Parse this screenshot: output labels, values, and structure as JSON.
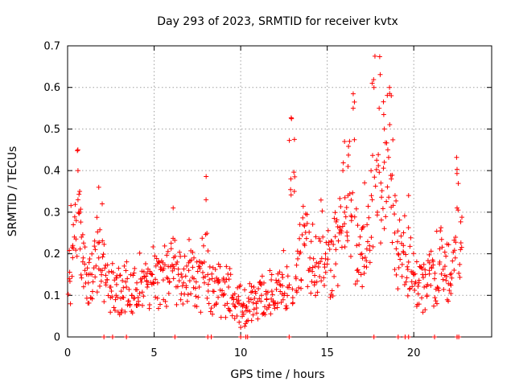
{
  "chart_data": {
    "type": "scatter",
    "title": "Day 293 of 2023, SRMTID for receiver kvtx",
    "xlabel": "GPS time / hours",
    "ylabel": "SRMTID / TECUs",
    "xlim": [
      0,
      24.5
    ],
    "ylim": [
      0,
      0.7
    ],
    "xticks": [
      0,
      5,
      10,
      15,
      20
    ],
    "xtick_labels": [
      "0",
      "5",
      "10",
      "15",
      "20"
    ],
    "yticks": [
      0,
      0.1,
      0.2,
      0.3,
      0.4,
      0.5,
      0.6,
      0.7
    ],
    "ytick_labels": [
      "0",
      "0.1",
      "0.2",
      "0.3",
      "0.4",
      "0.5",
      "0.6",
      "0.7"
    ],
    "grid": true,
    "marker": "+",
    "color": "#ff0000",
    "series": [
      {
        "name": "SRMTID",
        "x": [
          0.1,
          0.3,
          0.5,
          0.6,
          0.7,
          0.8,
          0.9,
          1.0,
          1.2,
          1.4,
          1.6,
          1.8,
          2.0,
          2.2,
          2.5,
          2.8,
          3.1,
          3.4,
          3.7,
          4.0,
          4.3,
          4.6,
          4.9,
          5.2,
          5.5,
          5.8,
          6.1,
          6.4,
          6.7,
          7.0,
          7.3,
          7.6,
          7.9,
          8.1,
          8.4,
          8.7,
          9.0,
          9.3,
          9.6,
          9.9,
          10.1,
          10.3,
          10.6,
          10.9,
          11.2,
          11.5,
          11.8,
          12.1,
          12.4,
          12.7,
          13.0,
          13.2,
          13.4,
          13.7,
          14.0,
          14.3,
          14.6,
          14.9,
          15.2,
          15.5,
          15.8,
          16.0,
          16.2,
          16.4,
          16.7,
          17.0,
          17.3,
          17.6,
          17.9,
          18.1,
          18.3,
          18.5,
          18.7,
          18.9,
          19.1,
          19.4,
          19.7,
          20.0,
          20.3,
          20.6,
          20.9,
          21.2,
          21.5,
          21.8,
          22.1,
          22.4,
          22.7,
          0.6,
          0.7,
          1.8,
          2.0,
          6.1,
          8.0,
          12.9,
          13.1,
          16.0,
          16.2,
          16.5,
          17.6,
          17.7,
          18.0,
          18.3,
          18.6,
          18.7,
          19.7,
          22.5
        ],
        "y": [
          0.14,
          0.22,
          0.28,
          0.33,
          0.3,
          0.24,
          0.19,
          0.16,
          0.13,
          0.15,
          0.21,
          0.19,
          0.16,
          0.13,
          0.12,
          0.1,
          0.11,
          0.12,
          0.1,
          0.13,
          0.14,
          0.12,
          0.15,
          0.13,
          0.16,
          0.14,
          0.17,
          0.15,
          0.13,
          0.16,
          0.14,
          0.12,
          0.18,
          0.15,
          0.11,
          0.13,
          0.1,
          0.12,
          0.09,
          0.08,
          0.06,
          0.07,
          0.09,
          0.08,
          0.1,
          0.09,
          0.11,
          0.13,
          0.15,
          0.12,
          0.08,
          0.14,
          0.2,
          0.22,
          0.19,
          0.17,
          0.23,
          0.2,
          0.16,
          0.21,
          0.25,
          0.3,
          0.34,
          0.28,
          0.22,
          0.2,
          0.27,
          0.33,
          0.3,
          0.37,
          0.42,
          0.45,
          0.38,
          0.25,
          0.2,
          0.22,
          0.18,
          0.15,
          0.13,
          0.12,
          0.16,
          0.14,
          0.18,
          0.17,
          0.15,
          0.19,
          0.21,
          0.4,
          0.35,
          0.36,
          0.32,
          0.31,
          0.33,
          0.38,
          0.35,
          0.47,
          0.41,
          0.55,
          0.61,
          0.6,
          0.55,
          0.5,
          0.6,
          0.58,
          0.34,
          0.31
        ],
        "zeros_x": [
          2.1,
          2.6,
          3.4,
          6.2,
          8.1,
          8.3,
          10.0,
          10.3,
          10.4,
          12.8,
          17.7,
          19.1,
          19.5,
          19.7,
          21.2,
          22.5,
          22.6
        ]
      }
    ]
  }
}
